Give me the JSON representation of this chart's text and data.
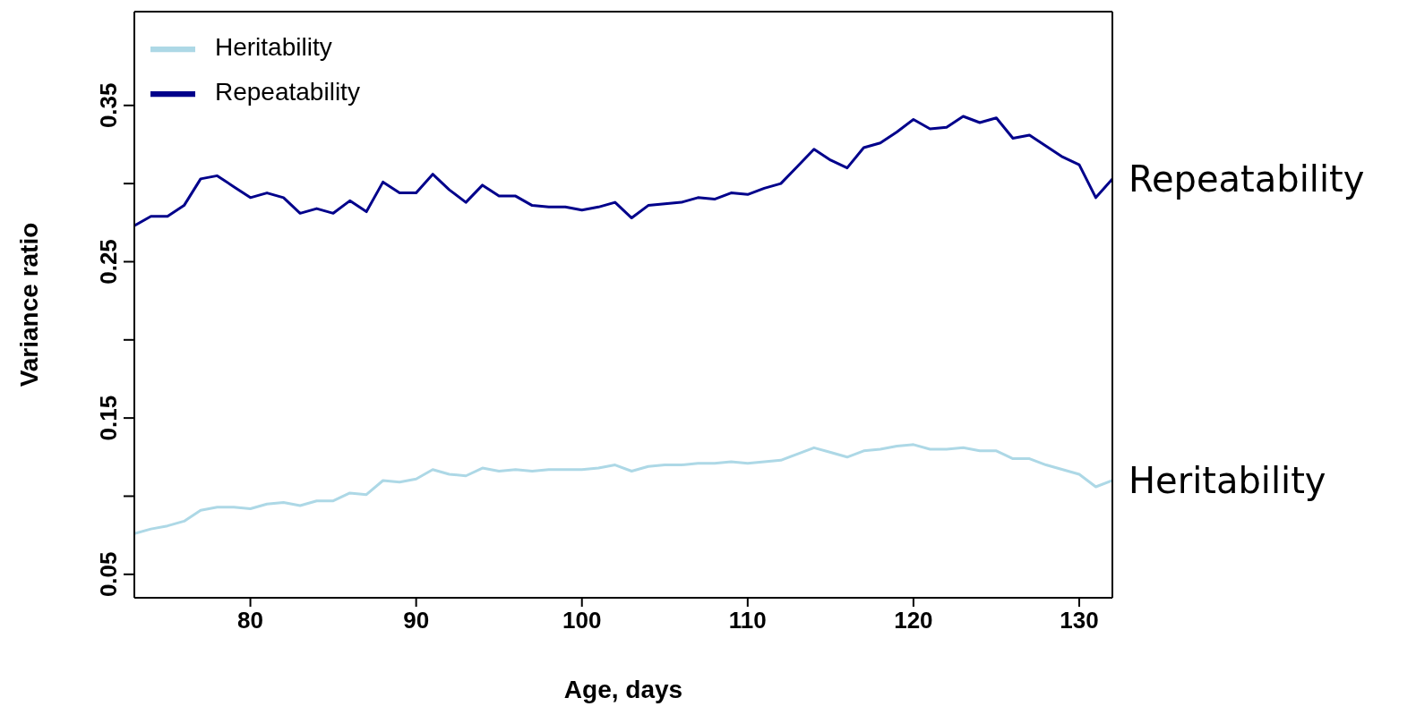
{
  "chart_data": {
    "type": "line",
    "xlabel": "Age, days",
    "ylabel": "Variance ratio",
    "x": [
      73,
      74,
      75,
      76,
      77,
      78,
      79,
      80,
      81,
      82,
      83,
      84,
      85,
      86,
      87,
      88,
      89,
      90,
      91,
      92,
      93,
      94,
      95,
      96,
      97,
      98,
      99,
      100,
      101,
      102,
      103,
      104,
      105,
      106,
      107,
      108,
      109,
      110,
      111,
      112,
      113,
      114,
      115,
      116,
      117,
      118,
      119,
      120,
      121,
      122,
      123,
      124,
      125,
      126,
      127,
      128,
      129,
      130,
      131,
      132
    ],
    "series": [
      {
        "name": "Heritability",
        "color": "#add8e6",
        "values": [
          0.076,
          0.079,
          0.081,
          0.084,
          0.091,
          0.093,
          0.093,
          0.092,
          0.095,
          0.096,
          0.094,
          0.097,
          0.097,
          0.102,
          0.101,
          0.11,
          0.109,
          0.111,
          0.117,
          0.114,
          0.113,
          0.118,
          0.116,
          0.117,
          0.116,
          0.117,
          0.117,
          0.117,
          0.118,
          0.12,
          0.116,
          0.119,
          0.12,
          0.12,
          0.121,
          0.121,
          0.122,
          0.121,
          0.122,
          0.123,
          0.127,
          0.131,
          0.128,
          0.125,
          0.129,
          0.13,
          0.132,
          0.133,
          0.13,
          0.13,
          0.131,
          0.129,
          0.129,
          0.124,
          0.124,
          0.12,
          0.117,
          0.114,
          0.106,
          0.11
        ]
      },
      {
        "name": "Repeatability",
        "color": "#00008b",
        "values": [
          0.273,
          0.279,
          0.279,
          0.286,
          0.303,
          0.305,
          0.298,
          0.291,
          0.294,
          0.291,
          0.281,
          0.284,
          0.281,
          0.289,
          0.282,
          0.301,
          0.294,
          0.294,
          0.306,
          0.296,
          0.288,
          0.299,
          0.292,
          0.292,
          0.286,
          0.285,
          0.285,
          0.283,
          0.285,
          0.288,
          0.278,
          0.286,
          0.287,
          0.288,
          0.291,
          0.29,
          0.294,
          0.293,
          0.297,
          0.3,
          0.311,
          0.322,
          0.315,
          0.31,
          0.323,
          0.326,
          0.333,
          0.341,
          0.335,
          0.336,
          0.343,
          0.339,
          0.342,
          0.329,
          0.331,
          0.324,
          0.317,
          0.312,
          0.291,
          0.303
        ]
      }
    ],
    "xlim": [
      73,
      132
    ],
    "xticks": [
      80,
      90,
      100,
      110,
      120,
      130
    ],
    "ylim": [
      0.035,
      0.41
    ],
    "yticks": [
      0.05,
      {
        "value": 0.1,
        "label": null
      },
      0.15,
      {
        "value": 0.2,
        "label": null
      },
      0.25,
      {
        "value": 0.3,
        "label": null
      },
      0.35
    ],
    "legend": "top left",
    "grid": false,
    "marker": "none",
    "line_style": "solid"
  }
}
